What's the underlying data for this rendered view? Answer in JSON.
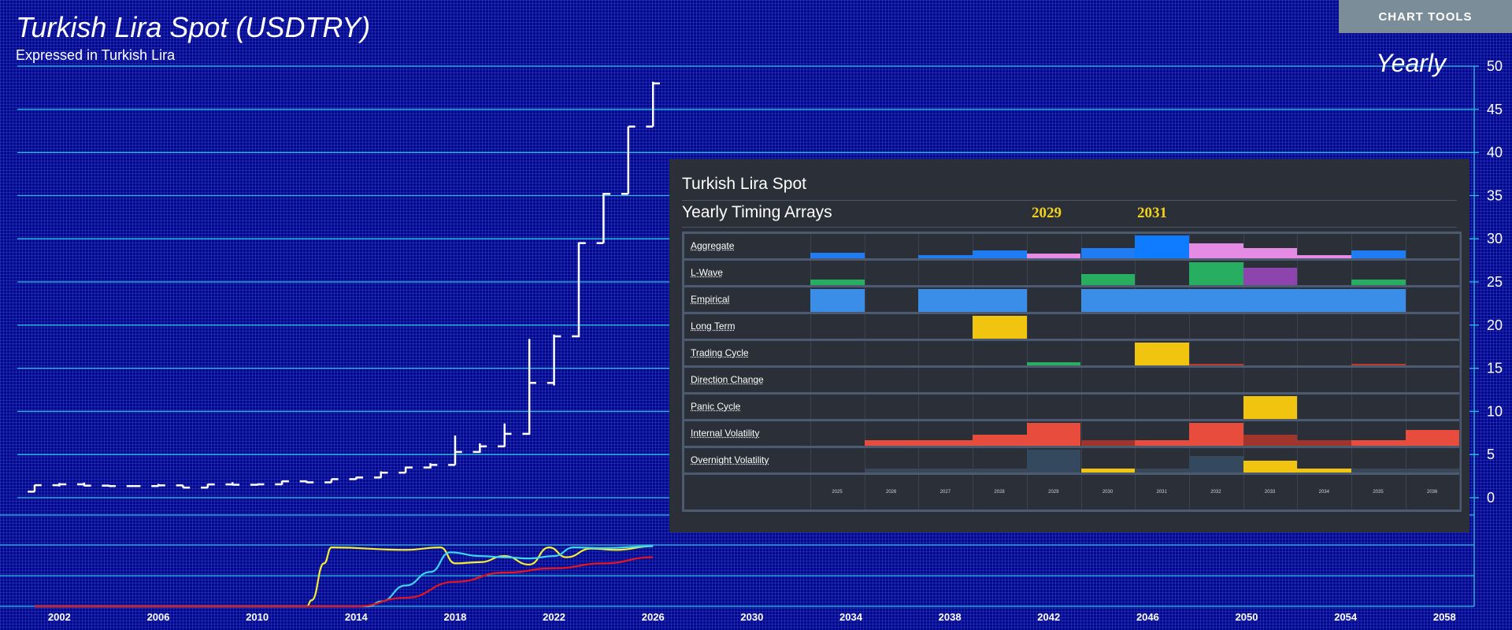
{
  "header": {
    "title": "Turkish Lira Spot (USDTRY)",
    "subtitle": "Expressed in Turkish Lira",
    "period": "Yearly",
    "chart_tools": "CHART TOOLS"
  },
  "colors": {
    "background": "#05088a",
    "gridline": "#29c0e0",
    "bar": "#ffffff",
    "ind_yellow": "#f5ee33",
    "ind_cyan": "#3fd6f2",
    "ind_red": "#e8161c"
  },
  "chart_data": [
    {
      "type": "ohlc",
      "title": "Turkish Lira Spot (USDTRY)",
      "subtitle": "Expressed in Turkish Lira",
      "ylim": [
        0,
        50
      ],
      "y_ticks": [
        0,
        5,
        10,
        15,
        20,
        25,
        30,
        35,
        40,
        45,
        50
      ],
      "x_ticks": [
        2002,
        2006,
        2010,
        2014,
        2018,
        2022,
        2026,
        2030,
        2034,
        2038,
        2042,
        2046,
        2050,
        2054,
        2058
      ],
      "xlim": [
        2000.3,
        2059.2
      ],
      "grid": true,
      "bars": [
        {
          "x": 2001,
          "open": 0.7,
          "high": 1.5,
          "low": 0.7,
          "close": 1.45
        },
        {
          "x": 2002,
          "open": 1.45,
          "high": 1.7,
          "low": 1.3,
          "close": 1.55
        },
        {
          "x": 2003,
          "open": 1.55,
          "high": 1.75,
          "low": 1.35,
          "close": 1.4
        },
        {
          "x": 2004,
          "open": 1.4,
          "high": 1.5,
          "low": 1.3,
          "close": 1.35
        },
        {
          "x": 2005,
          "open": 1.35,
          "high": 1.4,
          "low": 1.3,
          "close": 1.35
        },
        {
          "x": 2006,
          "open": 1.35,
          "high": 1.6,
          "low": 1.3,
          "close": 1.43
        },
        {
          "x": 2007,
          "open": 1.43,
          "high": 1.45,
          "low": 1.15,
          "close": 1.17
        },
        {
          "x": 2008,
          "open": 1.17,
          "high": 1.6,
          "low": 1.15,
          "close": 1.54
        },
        {
          "x": 2009,
          "open": 1.54,
          "high": 1.8,
          "low": 1.45,
          "close": 1.5
        },
        {
          "x": 2010,
          "open": 1.5,
          "high": 1.6,
          "low": 1.4,
          "close": 1.55
        },
        {
          "x": 2011,
          "open": 1.55,
          "high": 1.95,
          "low": 1.5,
          "close": 1.9
        },
        {
          "x": 2012,
          "open": 1.9,
          "high": 1.95,
          "low": 1.7,
          "close": 1.78
        },
        {
          "x": 2013,
          "open": 1.78,
          "high": 2.15,
          "low": 1.76,
          "close": 2.15
        },
        {
          "x": 2014,
          "open": 2.15,
          "high": 2.4,
          "low": 2.1,
          "close": 2.34
        },
        {
          "x": 2015,
          "open": 2.34,
          "high": 3.05,
          "low": 2.3,
          "close": 2.9
        },
        {
          "x": 2016,
          "open": 2.9,
          "high": 3.6,
          "low": 2.9,
          "close": 3.5
        },
        {
          "x": 2017,
          "open": 3.5,
          "high": 4.0,
          "low": 3.4,
          "close": 3.8
        },
        {
          "x": 2018,
          "open": 3.8,
          "high": 7.2,
          "low": 3.8,
          "close": 5.3
        },
        {
          "x": 2019,
          "open": 5.3,
          "high": 6.3,
          "low": 5.2,
          "close": 5.95
        },
        {
          "x": 2020,
          "open": 5.95,
          "high": 8.6,
          "low": 5.9,
          "close": 7.4
        },
        {
          "x": 2021,
          "open": 7.4,
          "high": 18.4,
          "low": 7.3,
          "close": 13.3
        },
        {
          "x": 2022,
          "open": 13.3,
          "high": 18.9,
          "low": 13.0,
          "close": 18.7
        },
        {
          "x": 2023,
          "open": 18.7,
          "high": 29.6,
          "low": 18.6,
          "close": 29.5
        },
        {
          "x": 2024,
          "open": 29.5,
          "high": 35.3,
          "low": 29.5,
          "close": 35.2
        },
        {
          "x": 2025,
          "open": 35.2,
          "high": 43.0,
          "low": 35.2,
          "close": 43.0
        },
        {
          "x": 2026,
          "open": 43.0,
          "high": 48.2,
          "low": 43.0,
          "close": 48.0
        }
      ]
    },
    {
      "type": "line",
      "ylim": [
        0,
        100
      ],
      "series": [
        {
          "color": "#f5ee33",
          "x": [
            2001,
            2012,
            2012.2,
            2012.7,
            2013,
            2016,
            2017.4,
            2018,
            2019,
            2020,
            2021,
            2021.8,
            2022.5,
            2023.5,
            2024.5,
            2026
          ],
          "values": [
            0,
            0,
            10,
            70,
            96,
            92,
            96,
            70,
            72,
            82,
            68,
            96,
            80,
            94,
            92,
            98
          ]
        },
        {
          "color": "#3fd6f2",
          "x": [
            2001,
            2014.5,
            2015,
            2016,
            2017,
            2017.8,
            2019,
            2020,
            2021,
            2022,
            2022.8,
            2024,
            2026
          ],
          "values": [
            0,
            0,
            8,
            34,
            56,
            88,
            82,
            80,
            78,
            82,
            96,
            95,
            98
          ]
        },
        {
          "color": "#e8161c",
          "x": [
            2001,
            2014,
            2016,
            2018,
            2020,
            2022,
            2024,
            2026
          ],
          "values": [
            0,
            0,
            14,
            40,
            55,
            62,
            70,
            80
          ]
        }
      ]
    }
  ],
  "panel": {
    "title": "Turkish Lira Spot",
    "subtitle": "Yearly Timing Arrays",
    "highlight_years": [
      "2029",
      "2031"
    ],
    "years": [
      "2025",
      "2026",
      "2027",
      "2028",
      "2029",
      "2030",
      "2031",
      "2032",
      "2033",
      "2034",
      "2035",
      "2036"
    ],
    "rows": [
      {
        "label": "Aggregate",
        "cells": [
          {
            "i": 0,
            "h": 0.22,
            "c": "#1f7cf2"
          },
          {
            "i": 2,
            "h": 0.12,
            "c": "#1f7cf2"
          },
          {
            "i": 3,
            "h": 0.32,
            "c": "#1f7cf2"
          },
          {
            "i": 4,
            "h": 0.2,
            "c": "#e58be3"
          },
          {
            "i": 5,
            "h": 0.42,
            "c": "#1f7cf2"
          },
          {
            "i": 6,
            "h": 0.95,
            "c": "#0f7bff"
          },
          {
            "i": 7,
            "h": 0.62,
            "c": "#e58be3"
          },
          {
            "i": 8,
            "h": 0.42,
            "c": "#e58be3"
          },
          {
            "i": 9,
            "h": 0.12,
            "c": "#e58be3"
          },
          {
            "i": 10,
            "h": 0.32,
            "c": "#1f7cf2"
          }
        ]
      },
      {
        "label": "L-Wave",
        "cells": [
          {
            "i": 0,
            "h": 0.24,
            "c": "#27ae60"
          },
          {
            "i": 5,
            "h": 0.46,
            "c": "#27ae60"
          },
          {
            "i": 7,
            "h": 0.95,
            "c": "#27ae60"
          },
          {
            "i": 8,
            "h": 0.72,
            "c": "#8e44ad"
          },
          {
            "i": 10,
            "h": 0.22,
            "c": "#27ae60"
          }
        ]
      },
      {
        "label": "Empirical",
        "cells": [
          {
            "i": 0,
            "h": 0.95,
            "c": "#3a8ee8"
          },
          {
            "i": 2,
            "h": 0.95,
            "c": "#3a8ee8"
          },
          {
            "i": 3,
            "h": 0.95,
            "c": "#3a8ee8"
          },
          {
            "i": 5,
            "h": 0.95,
            "c": "#3a8ee8"
          },
          {
            "i": 6,
            "h": 0.95,
            "c": "#3a8ee8"
          },
          {
            "i": 7,
            "h": 0.95,
            "c": "#3a8ee8"
          },
          {
            "i": 8,
            "h": 0.95,
            "c": "#3a8ee8"
          },
          {
            "i": 9,
            "h": 0.95,
            "c": "#3a8ee8"
          },
          {
            "i": 10,
            "h": 0.95,
            "c": "#3a8ee8"
          }
        ]
      },
      {
        "label": "Long Term",
        "cells": [
          {
            "i": 3,
            "h": 0.95,
            "c": "#f1c40f"
          }
        ]
      },
      {
        "label": "Trading Cycle",
        "cells": [
          {
            "i": 4,
            "h": 0.14,
            "c": "#27ae60"
          },
          {
            "i": 6,
            "h": 0.95,
            "c": "#f1c40f"
          },
          {
            "i": 7,
            "h": 0.06,
            "c": "#c0392b"
          },
          {
            "i": 10,
            "h": 0.08,
            "c": "#c0392b"
          }
        ]
      },
      {
        "label": "Direction Change",
        "cells": []
      },
      {
        "label": "Panic Cycle",
        "cells": [
          {
            "i": 8,
            "h": 0.95,
            "c": "#f1c40f"
          }
        ]
      },
      {
        "label": "Internal Volatility",
        "cells": [
          {
            "i": 1,
            "h": 0.22,
            "c": "#e74c3c"
          },
          {
            "i": 2,
            "h": 0.22,
            "c": "#e74c3c"
          },
          {
            "i": 3,
            "h": 0.46,
            "c": "#e74c3c"
          },
          {
            "i": 4,
            "h": 0.95,
            "c": "#e74c3c"
          },
          {
            "i": 5,
            "h": 0.22,
            "c": "#a0352c"
          },
          {
            "i": 6,
            "h": 0.22,
            "c": "#e74c3c"
          },
          {
            "i": 7,
            "h": 0.95,
            "c": "#e74c3c"
          },
          {
            "i": 8,
            "h": 0.46,
            "c": "#a0352c"
          },
          {
            "i": 9,
            "h": 0.22,
            "c": "#a0352c"
          },
          {
            "i": 10,
            "h": 0.22,
            "c": "#e74c3c"
          },
          {
            "i": 11,
            "h": 0.66,
            "c": "#e74c3c"
          }
        ]
      },
      {
        "label": "Overnight Volatility",
        "cells": [
          {
            "i": 1,
            "h": 0.18,
            "c": "#3a4758"
          },
          {
            "i": 2,
            "h": 0.18,
            "c": "#3a4758"
          },
          {
            "i": 3,
            "h": 0.18,
            "c": "#3a4758"
          },
          {
            "i": 4,
            "h": 0.95,
            "c": "#34495e"
          },
          {
            "i": 5,
            "h": 0.18,
            "c": "#f1c40f"
          },
          {
            "i": 6,
            "h": 0.18,
            "c": "#3a4758"
          },
          {
            "i": 7,
            "h": 0.7,
            "c": "#34495e"
          },
          {
            "i": 8,
            "h": 0.5,
            "c": "#f1c40f"
          },
          {
            "i": 9,
            "h": 0.18,
            "c": "#f1c40f"
          },
          {
            "i": 10,
            "h": 0.18,
            "c": "#3a4758"
          },
          {
            "i": 11,
            "h": 0.18,
            "c": "#3a4758"
          }
        ]
      }
    ]
  }
}
